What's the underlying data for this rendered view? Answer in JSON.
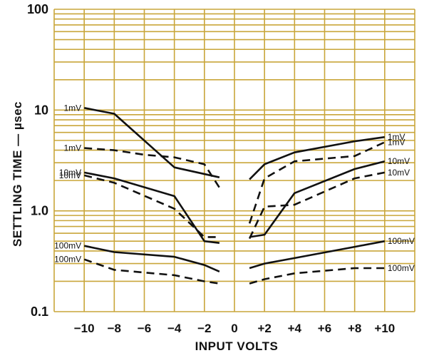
{
  "chart_data": {
    "type": "line",
    "xlabel": "INPUT VOLTS",
    "ylabel": "SETTLING TIME — µsec",
    "y_scale": "log",
    "ylim": [
      0.1,
      100
    ],
    "xlim": [
      -12,
      12
    ],
    "grid": true,
    "x_ticks": [
      -10,
      -8,
      -6,
      -4,
      -2,
      0,
      2,
      4,
      6,
      8,
      10
    ],
    "x_tick_labels": [
      "−10",
      "−8",
      "−6",
      "−4",
      "−2",
      "0",
      "+2",
      "+4",
      "+6",
      "+8",
      "+10"
    ],
    "y_ticks": [
      0.1,
      1,
      10,
      100
    ],
    "y_tick_labels": [
      "0.1",
      "1.0",
      "10",
      "100"
    ],
    "colors": {
      "grid": "#c9a63a",
      "line": "#111111",
      "background": "#ffffff"
    },
    "series": [
      {
        "style": "solid",
        "label_left": "1mV",
        "label_right": "1mV",
        "x": [
          -10,
          -8,
          -4,
          -1,
          1,
          2,
          4,
          8,
          10
        ],
        "y": [
          10.5,
          9.2,
          2.7,
          2.15,
          2.05,
          2.9,
          3.8,
          4.9,
          5.4
        ]
      },
      {
        "style": "dashed",
        "label_left": "1mV",
        "label_right": "1mV",
        "x": [
          -10,
          -8,
          -6,
          -4,
          -2,
          -1,
          1,
          2,
          4,
          8,
          10
        ],
        "y": [
          4.2,
          4.0,
          3.6,
          3.4,
          2.9,
          1.7,
          0.75,
          2.1,
          3.1,
          3.5,
          4.8
        ]
      },
      {
        "style": "solid",
        "label_left": "10mV",
        "label_right": "10mV",
        "x": [
          -10,
          -8,
          -4,
          -2,
          -1,
          1,
          2,
          4,
          8,
          10
        ],
        "y": [
          2.4,
          2.1,
          1.4,
          0.5,
          0.48,
          0.55,
          0.58,
          1.5,
          2.6,
          3.1
        ]
      },
      {
        "style": "dashed",
        "label_left": "10mV",
        "label_right": "10mV",
        "x": [
          -10,
          -8,
          -4,
          -2,
          -1,
          1,
          2,
          4,
          8,
          10
        ],
        "y": [
          2.25,
          1.9,
          1.05,
          0.55,
          0.55,
          0.53,
          1.1,
          1.15,
          2.1,
          2.4
        ]
      },
      {
        "style": "solid",
        "label_left": "100mV",
        "label_right": "100mV",
        "x": [
          -10,
          -8,
          -4,
          -2,
          -1,
          1,
          2,
          4,
          8,
          10
        ],
        "y": [
          0.45,
          0.39,
          0.35,
          0.29,
          0.25,
          0.27,
          0.3,
          0.34,
          0.44,
          0.5
        ]
      },
      {
        "style": "dashed",
        "label_left": "100mV",
        "label_right": "100mV",
        "x": [
          -10,
          -8,
          -4,
          -2,
          -1,
          1,
          2,
          4,
          8,
          10
        ],
        "y": [
          0.33,
          0.26,
          0.23,
          0.2,
          0.19,
          0.19,
          0.21,
          0.24,
          0.27,
          0.27
        ]
      }
    ]
  }
}
